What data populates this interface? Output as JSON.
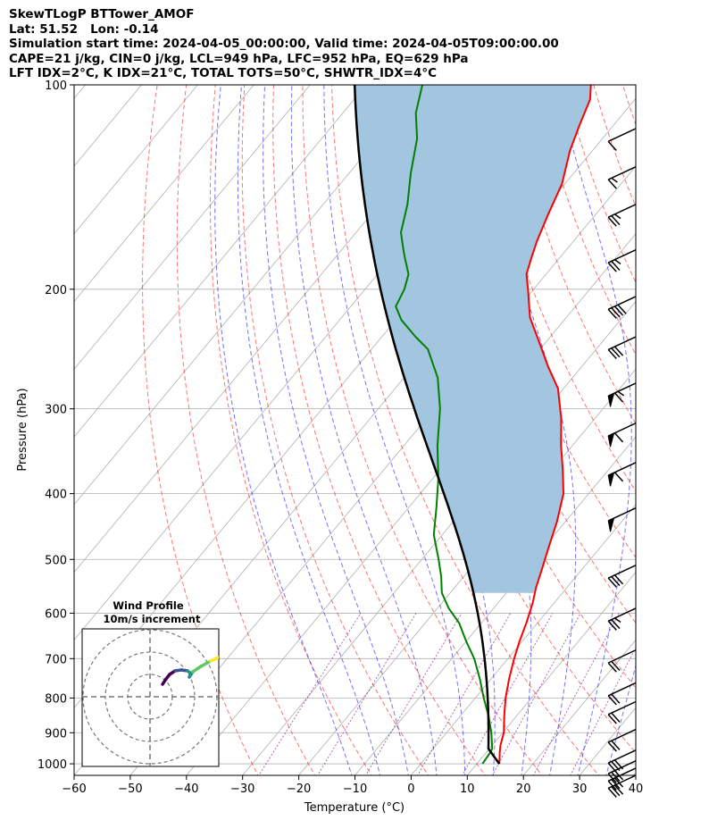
{
  "header": {
    "line1": "SkewTLogP BTTower_AMOF",
    "line2": "Lat: 51.52   Lon: -0.14",
    "line3": "Simulation start time: 2024-04-05_00:00:00, Valid time: 2024-04-05T09:00:00.00",
    "line4": "CAPE=21 j/kg, CIN=0 j/kg, LCL=949 hPa, LFC=952 hPa, EQ=629 hPa",
    "line5": "LFT IDX=2°C, K IDX=21°C, TOTAL TOTS=50°C, SHWTR_IDX=4°C"
  },
  "chart_data": {
    "type": "skewt-logp",
    "xlabel": "Temperature (°C)",
    "ylabel": "Pressure (hPa)",
    "xlim": [
      -60,
      40
    ],
    "ylim": [
      1040,
      100
    ],
    "x_ticks": [
      "−60",
      "−50",
      "−40",
      "−30",
      "−20",
      "−10",
      "0",
      "10",
      "20",
      "30",
      "40"
    ],
    "x_tick_values": [
      -60,
      -50,
      -40,
      -30,
      -20,
      -10,
      0,
      10,
      20,
      30,
      40
    ],
    "p_ticks": [
      100,
      200,
      300,
      400,
      500,
      600,
      700,
      800,
      900,
      1000
    ],
    "grid": true,
    "colors": {
      "temperature": "#ff0000",
      "dewpoint": "#008000",
      "parcel": "#000000",
      "cape_fill": "#a2c6e0",
      "dry_adiabats": "#ff0000",
      "moist_adiabats": "#0000ff",
      "mixing_ratio": "#800080"
    },
    "series": [
      {
        "role": "temperature",
        "points": [
          [
            14.0,
            1000
          ],
          [
            12.3,
            960
          ],
          [
            11.5,
            940
          ],
          [
            10.2,
            900
          ],
          [
            7.8,
            850
          ],
          [
            5.4,
            800
          ],
          [
            3.2,
            750
          ],
          [
            1.1,
            700
          ],
          [
            -0.5,
            660
          ],
          [
            -2.0,
            620
          ],
          [
            -3.8,
            580
          ],
          [
            -5.5,
            550
          ],
          [
            -7.0,
            520
          ],
          [
            -9.2,
            480
          ],
          [
            -11.5,
            440
          ],
          [
            -14.5,
            400
          ],
          [
            -18.0,
            370
          ],
          [
            -22.0,
            340
          ],
          [
            -26.0,
            310
          ],
          [
            -31.0,
            280
          ],
          [
            -36.0,
            260
          ],
          [
            -41.0,
            240
          ],
          [
            -46.5,
            220
          ],
          [
            -51.0,
            200
          ],
          [
            -53.5,
            190
          ],
          [
            -55.0,
            180
          ],
          [
            -56.5,
            170
          ],
          [
            -58.5,
            155
          ],
          [
            -60.5,
            140
          ],
          [
            -64.0,
            125
          ],
          [
            -66.0,
            115
          ],
          [
            -68.0,
            105
          ],
          [
            -70.0,
            100
          ]
        ]
      },
      {
        "role": "dewpoint",
        "points": [
          [
            11.0,
            1000
          ],
          [
            10.7,
            960
          ],
          [
            10.5,
            950
          ],
          [
            8.0,
            900
          ],
          [
            5.0,
            850
          ],
          [
            1.5,
            800
          ],
          [
            -2.0,
            750
          ],
          [
            -6.0,
            700
          ],
          [
            -10.0,
            660
          ],
          [
            -14.0,
            620
          ],
          [
            -18.0,
            590
          ],
          [
            -21.5,
            560
          ],
          [
            -24.0,
            530
          ],
          [
            -27.0,
            500
          ],
          [
            -31.5,
            460
          ],
          [
            -35.0,
            420
          ],
          [
            -39.0,
            380
          ],
          [
            -44.0,
            340
          ],
          [
            -49.0,
            300
          ],
          [
            -54.0,
            270
          ],
          [
            -60.0,
            245
          ],
          [
            -64.0,
            235
          ],
          [
            -69.0,
            222
          ],
          [
            -72.0,
            212
          ],
          [
            -73.0,
            200
          ],
          [
            -74.5,
            190
          ],
          [
            -77.5,
            180
          ],
          [
            -79.0,
            175
          ],
          [
            -82.0,
            165
          ],
          [
            -85.0,
            150
          ],
          [
            -89.0,
            135
          ],
          [
            -93.0,
            120
          ],
          [
            -97.0,
            110
          ],
          [
            -100.0,
            100
          ]
        ]
      }
    ],
    "winds": [
      {
        "p": 1040,
        "flags": 0,
        "barbs": 3
      },
      {
        "p": 1015,
        "flags": 0,
        "barbs": 3
      },
      {
        "p": 990,
        "flags": 0,
        "barbs": 3
      },
      {
        "p": 955,
        "flags": 0,
        "barbs": 3
      },
      {
        "p": 890,
        "flags": 0,
        "barbs": 2
      },
      {
        "p": 810,
        "flags": 0,
        "barbs": 2
      },
      {
        "p": 760,
        "flags": 0,
        "barbs": 2
      },
      {
        "p": 680,
        "flags": 0,
        "barbs": 2
      },
      {
        "p": 590,
        "flags": 0,
        "barbs": 2.5
      },
      {
        "p": 510,
        "flags": 0,
        "barbs": 3
      },
      {
        "p": 420,
        "flags": 1,
        "barbs": 0
      },
      {
        "p": 360,
        "flags": 1,
        "barbs": 1
      },
      {
        "p": 315,
        "flags": 1,
        "barbs": 1
      },
      {
        "p": 275,
        "flags": 1,
        "barbs": 1.5
      },
      {
        "p": 235,
        "flags": 0,
        "barbs": 3
      },
      {
        "p": 205,
        "flags": 0,
        "barbs": 4
      },
      {
        "p": 175,
        "flags": 0,
        "barbs": 2.5
      },
      {
        "p": 150,
        "flags": 0,
        "barbs": 2.5
      },
      {
        "p": 132,
        "flags": 0,
        "barbs": 1.5
      },
      {
        "p": 116,
        "flags": 0,
        "barbs": 1
      }
    ],
    "hodograph": {
      "title": "Wind Profile",
      "subtitle": "10m/s increment",
      "rings_ms": [
        10,
        20,
        30
      ],
      "colormap": [
        "#440154",
        "#3b528b",
        "#21918c",
        "#5ec962",
        "#fde725"
      ]
    }
  }
}
